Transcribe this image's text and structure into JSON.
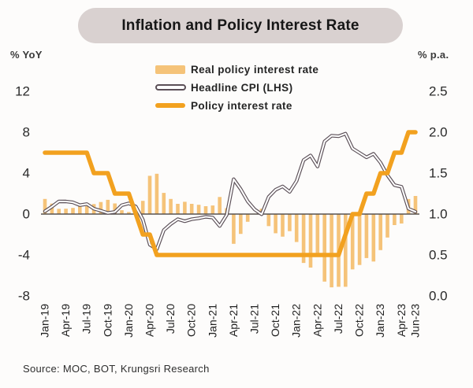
{
  "header": {
    "title": "Inflation and Policy Interest Rate"
  },
  "source": "Source: MOC, BOT, Krungsri Research",
  "chart_data": {
    "type": "bar",
    "subtype": "combo-bar-and-line-dual-axis",
    "title": "Inflation and Policy Interest Rate",
    "grid": false,
    "legend_position": "top-center-inside",
    "left_axis": {
      "label": "% YoY",
      "range": [
        -8,
        12
      ],
      "ticks": [
        "12",
        "8",
        "4",
        "0",
        "-4",
        "-8"
      ]
    },
    "right_axis": {
      "label": "% p.a.",
      "range": [
        0.0,
        2.5
      ],
      "ticks": [
        "2.5",
        "2.0",
        "1.5",
        "1.0",
        "0.5",
        "0.0"
      ]
    },
    "x": [
      "Jan-19",
      "Feb-19",
      "Mar-19",
      "Apr-19",
      "May-19",
      "Jun-19",
      "Jul-19",
      "Aug-19",
      "Sep-19",
      "Oct-19",
      "Nov-19",
      "Dec-19",
      "Jan-20",
      "Feb-20",
      "Mar-20",
      "Apr-20",
      "May-20",
      "Jun-20",
      "Jul-20",
      "Aug-20",
      "Sep-20",
      "Oct-20",
      "Nov-20",
      "Dec-20",
      "Jan-21",
      "Feb-21",
      "Mar-21",
      "Apr-21",
      "May-21",
      "Jun-21",
      "Jul-21",
      "Aug-21",
      "Sep-21",
      "Oct-21",
      "Nov-21",
      "Dec-21",
      "Jan-22",
      "Feb-22",
      "Mar-22",
      "Apr-22",
      "May-22",
      "Jun-22",
      "Jul-22",
      "Aug-22",
      "Sep-22",
      "Oct-22",
      "Nov-22",
      "Dec-22",
      "Jan-23",
      "Feb-23",
      "Mar-23",
      "Apr-23",
      "May-23",
      "Jun-23"
    ],
    "x_tick_labels": [
      "Jan-19",
      "Apr-19",
      "Jul-19",
      "Oct-19",
      "Jan-20",
      "Apr-20",
      "Jul-20",
      "Oct-20",
      "Jan-21",
      "Apr-21",
      "Jul-21",
      "Oct-21",
      "Jan-22",
      "Apr-22",
      "Jul-22",
      "Oct-22",
      "Jan-23",
      "Apr-23",
      "Jun-23"
    ],
    "series": [
      {
        "key": "real",
        "name": "Real policy interest rate",
        "kind": "bar",
        "axis": "left",
        "color": "#f5c379",
        "values": [
          1.48,
          1.02,
          0.51,
          0.52,
          0.6,
          0.88,
          0.77,
          0.98,
          1.18,
          1.39,
          1.04,
          0.38,
          0.2,
          0.26,
          1.29,
          3.74,
          3.94,
          2.07,
          1.48,
          1.0,
          1.2,
          1.0,
          0.91,
          0.77,
          0.84,
          1.67,
          0.58,
          -2.91,
          -1.94,
          -0.75,
          0.05,
          0.52,
          -1.18,
          -1.88,
          -2.21,
          -1.67,
          -2.73,
          -4.78,
          -5.23,
          -4.15,
          -6.6,
          -7.16,
          -7.11,
          -7.11,
          -5.41,
          -4.98,
          -4.3,
          -4.64,
          -3.52,
          -2.29,
          -1.08,
          -0.92,
          1.47,
          1.77
        ]
      },
      {
        "key": "cpi",
        "name": "Headline CPI (LHS)",
        "kind": "line",
        "style": "outlined-white-core",
        "axis": "left",
        "color": "#5b4f57",
        "values": [
          0.27,
          0.73,
          1.24,
          1.23,
          1.15,
          0.87,
          0.98,
          0.52,
          0.32,
          0.11,
          0.21,
          0.87,
          1.05,
          0.74,
          -0.54,
          -2.99,
          -3.44,
          -1.57,
          -0.98,
          -0.5,
          -0.7,
          -0.5,
          -0.41,
          -0.27,
          -0.34,
          -1.17,
          -0.08,
          3.41,
          2.44,
          1.25,
          0.45,
          -0.02,
          1.68,
          2.38,
          2.71,
          2.17,
          3.23,
          5.28,
          5.73,
          4.65,
          7.1,
          7.66,
          7.61,
          7.86,
          6.41,
          5.98,
          5.55,
          5.89,
          5.02,
          3.79,
          2.83,
          2.67,
          0.53,
          0.23
        ]
      },
      {
        "key": "policy",
        "name": "Policy interest rate",
        "kind": "line",
        "axis": "right",
        "color": "#f2a11f",
        "values": [
          1.75,
          1.75,
          1.75,
          1.75,
          1.75,
          1.75,
          1.75,
          1.5,
          1.5,
          1.5,
          1.25,
          1.25,
          1.25,
          1.0,
          0.75,
          0.75,
          0.5,
          0.5,
          0.5,
          0.5,
          0.5,
          0.5,
          0.5,
          0.5,
          0.5,
          0.5,
          0.5,
          0.5,
          0.5,
          0.5,
          0.5,
          0.5,
          0.5,
          0.5,
          0.5,
          0.5,
          0.5,
          0.5,
          0.5,
          0.5,
          0.5,
          0.5,
          0.5,
          0.75,
          1.0,
          1.0,
          1.25,
          1.25,
          1.5,
          1.5,
          1.75,
          1.75,
          2.0,
          2.0
        ]
      }
    ],
    "colors": {
      "baseline": "#58534f",
      "title_pill_bg": "#d9d1d0",
      "text": "#242424"
    }
  }
}
